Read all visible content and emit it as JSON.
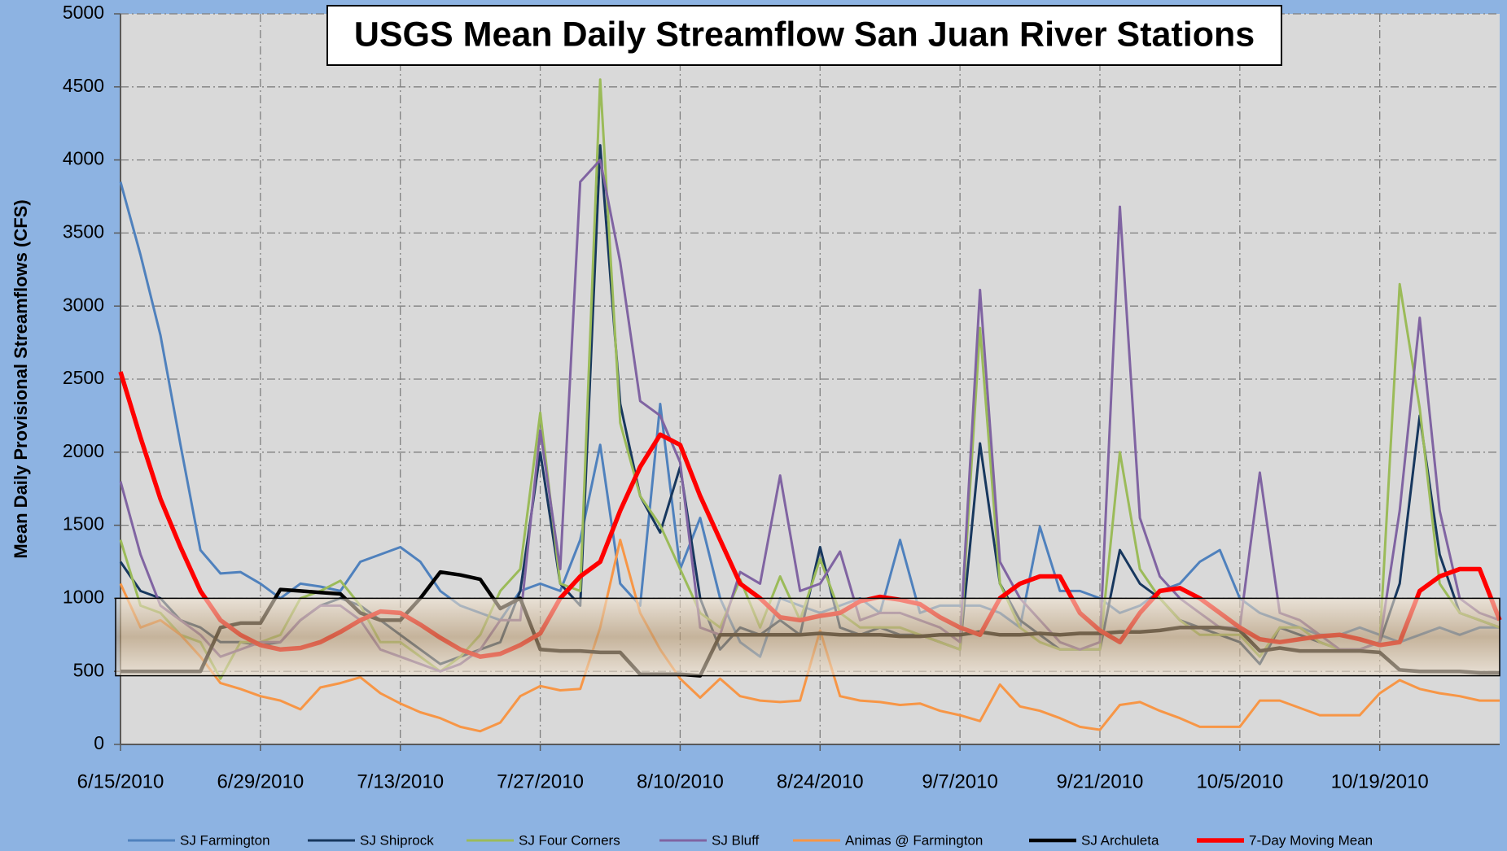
{
  "chart_data": {
    "type": "line",
    "title": "USGS Mean Daily Streamflow San Juan River Stations",
    "ylabel": "Mean Daily  Provisional  Streamflows (CFS)",
    "x": [
      "6/15/2010",
      "6/17/2010",
      "6/19/2010",
      "6/21/2010",
      "6/23/2010",
      "6/25/2010",
      "6/27/2010",
      "6/29/2010",
      "7/1/2010",
      "7/3/2010",
      "7/5/2010",
      "7/7/2010",
      "7/9/2010",
      "7/11/2010",
      "7/13/2010",
      "7/15/2010",
      "7/17/2010",
      "7/19/2010",
      "7/21/2010",
      "7/23/2010",
      "7/25/2010",
      "7/27/2010",
      "7/29/2010",
      "7/31/2010",
      "8/2/2010",
      "8/4/2010",
      "8/6/2010",
      "8/8/2010",
      "8/10/2010",
      "8/12/2010",
      "8/14/2010",
      "8/16/2010",
      "8/18/2010",
      "8/20/2010",
      "8/22/2010",
      "8/24/2010",
      "8/26/2010",
      "8/28/2010",
      "8/30/2010",
      "9/1/2010",
      "9/3/2010",
      "9/5/2010",
      "9/7/2010",
      "9/9/2010",
      "9/11/2010",
      "9/13/2010",
      "9/15/2010",
      "9/17/2010",
      "9/19/2010",
      "9/21/2010",
      "9/23/2010",
      "9/25/2010",
      "9/27/2010",
      "9/29/2010",
      "10/1/2010",
      "10/3/2010",
      "10/5/2010",
      "10/7/2010",
      "10/9/2010",
      "10/11/2010",
      "10/13/2010",
      "10/15/2010",
      "10/17/2010",
      "10/19/2010",
      "10/21/2010",
      "10/23/2010",
      "10/25/2010",
      "10/27/2010",
      "10/29/2010",
      "10/31/2010"
    ],
    "xlim": [
      "6/15/2010",
      "10/31/2010"
    ],
    "xticks": [
      "6/15/2010",
      "6/29/2010",
      "7/13/2010",
      "7/27/2010",
      "8/10/2010",
      "8/24/2010",
      "9/7/2010",
      "9/21/2010",
      "10/5/2010",
      "10/19/2010"
    ],
    "ylim": [
      0,
      5000
    ],
    "yticks": [
      0,
      500,
      1000,
      1500,
      2000,
      2500,
      3000,
      3500,
      4000,
      4500,
      5000
    ],
    "grid": true,
    "legend": "bottom",
    "band": [
      470,
      1000
    ],
    "series": [
      {
        "name": "SJ Farmington",
        "color": "#4f81bd",
        "values": [
          3850,
          3350,
          2800,
          2050,
          1330,
          1170,
          1180,
          1100,
          1000,
          1100,
          1080,
          1050,
          1250,
          1300,
          1350,
          1250,
          1050,
          950,
          900,
          850,
          1050,
          1100,
          1050,
          1400,
          2050,
          1100,
          950,
          2330,
          1200,
          1550,
          1000,
          700,
          600,
          1000,
          950,
          900,
          950,
          1000,
          900,
          1400,
          900,
          950,
          950,
          950,
          900,
          800,
          1490,
          1050,
          1050,
          1000,
          900,
          950,
          1050,
          1100,
          1250,
          1330,
          1000,
          900,
          850,
          800,
          750,
          750,
          800,
          750,
          700,
          750,
          800,
          750,
          800,
          800
        ]
      },
      {
        "name": "SJ Shiprock",
        "color": "#17375e",
        "values": [
          1250,
          1050,
          1000,
          850,
          800,
          700,
          700,
          680,
          700,
          850,
          950,
          1000,
          950,
          850,
          750,
          650,
          550,
          600,
          650,
          700,
          1050,
          2000,
          1100,
          950,
          4100,
          2330,
          1700,
          1450,
          1900,
          1000,
          650,
          800,
          750,
          850,
          750,
          1350,
          800,
          750,
          800,
          750,
          750,
          700,
          650,
          2060,
          1100,
          850,
          750,
          650,
          650,
          650,
          1330,
          1100,
          1000,
          850,
          800,
          750,
          700,
          550,
          800,
          750,
          700,
          650,
          650,
          700,
          1100,
          2250,
          1300,
          900,
          850,
          800
        ]
      },
      {
        "name": "SJ Four Corners",
        "color": "#9bbb59",
        "values": [
          1400,
          950,
          900,
          750,
          700,
          450,
          700,
          700,
          750,
          1000,
          1050,
          1120,
          950,
          700,
          700,
          600,
          500,
          600,
          750,
          1050,
          1200,
          2270,
          1100,
          1050,
          4550,
          2200,
          1700,
          1500,
          1200,
          900,
          800,
          1130,
          800,
          1150,
          850,
          1270,
          900,
          800,
          800,
          800,
          750,
          700,
          650,
          2850,
          1100,
          800,
          700,
          650,
          650,
          650,
          2000,
          1200,
          1000,
          850,
          750,
          750,
          750,
          600,
          800,
          800,
          700,
          650,
          650,
          700,
          3150,
          2300,
          1100,
          900,
          850,
          800
        ]
      },
      {
        "name": "SJ Bluff",
        "color": "#8064a2",
        "values": [
          1800,
          1300,
          950,
          850,
          750,
          600,
          650,
          700,
          700,
          850,
          950,
          950,
          850,
          650,
          600,
          550,
          500,
          550,
          650,
          850,
          850,
          2150,
          1200,
          3850,
          4000,
          3300,
          2350,
          2250,
          1930,
          800,
          750,
          1180,
          1100,
          1840,
          1050,
          1100,
          1320,
          850,
          900,
          900,
          850,
          800,
          700,
          3110,
          1250,
          1000,
          850,
          700,
          650,
          700,
          3680,
          1550,
          1150,
          1000,
          900,
          800,
          800,
          1860,
          900,
          850,
          750,
          650,
          650,
          700,
          1600,
          2920,
          1600,
          1000,
          900,
          850
        ]
      },
      {
        "name": "Animas  @ Farmington",
        "color": "#f79646",
        "values": [
          1100,
          800,
          850,
          750,
          600,
          420,
          380,
          330,
          300,
          240,
          390,
          420,
          460,
          350,
          280,
          220,
          180,
          120,
          90,
          150,
          330,
          400,
          370,
          380,
          800,
          1400,
          900,
          650,
          450,
          320,
          450,
          330,
          300,
          290,
          300,
          780,
          330,
          300,
          290,
          270,
          280,
          230,
          200,
          160,
          410,
          260,
          230,
          180,
          120,
          100,
          270,
          290,
          230,
          180,
          120,
          120,
          120,
          300,
          300,
          250,
          200,
          200,
          200,
          350,
          440,
          380,
          350,
          330,
          300,
          300
        ]
      },
      {
        "name": "SJ Archuleta",
        "color": "#000000",
        "values": [
          500,
          500,
          500,
          500,
          500,
          800,
          830,
          830,
          1060,
          1050,
          1040,
          1030,
          900,
          850,
          850,
          1000,
          1180,
          1160,
          1130,
          930,
          1000,
          650,
          640,
          640,
          630,
          630,
          480,
          480,
          480,
          470,
          750,
          750,
          750,
          750,
          750,
          760,
          750,
          750,
          750,
          740,
          740,
          750,
          750,
          770,
          750,
          750,
          760,
          750,
          760,
          760,
          770,
          770,
          780,
          800,
          800,
          800,
          780,
          640,
          660,
          640,
          640,
          640,
          640,
          630,
          510,
          500,
          500,
          500,
          490,
          490
        ]
      },
      {
        "name": "7-Day Moving Mean",
        "color": "#ff0000",
        "values": [
          2550,
          2100,
          1680,
          1350,
          1050,
          850,
          750,
          680,
          650,
          660,
          700,
          770,
          850,
          910,
          900,
          820,
          730,
          650,
          600,
          620,
          680,
          760,
          1000,
          1150,
          1250,
          1600,
          1900,
          2120,
          2050,
          1700,
          1400,
          1100,
          1000,
          870,
          850,
          880,
          900,
          980,
          1010,
          990,
          960,
          870,
          800,
          750,
          1000,
          1100,
          1150,
          1150,
          900,
          780,
          700,
          900,
          1050,
          1070,
          1000,
          900,
          800,
          720,
          700,
          720,
          740,
          750,
          720,
          680,
          700,
          1050,
          1150,
          1200,
          1200,
          850
        ]
      }
    ]
  }
}
